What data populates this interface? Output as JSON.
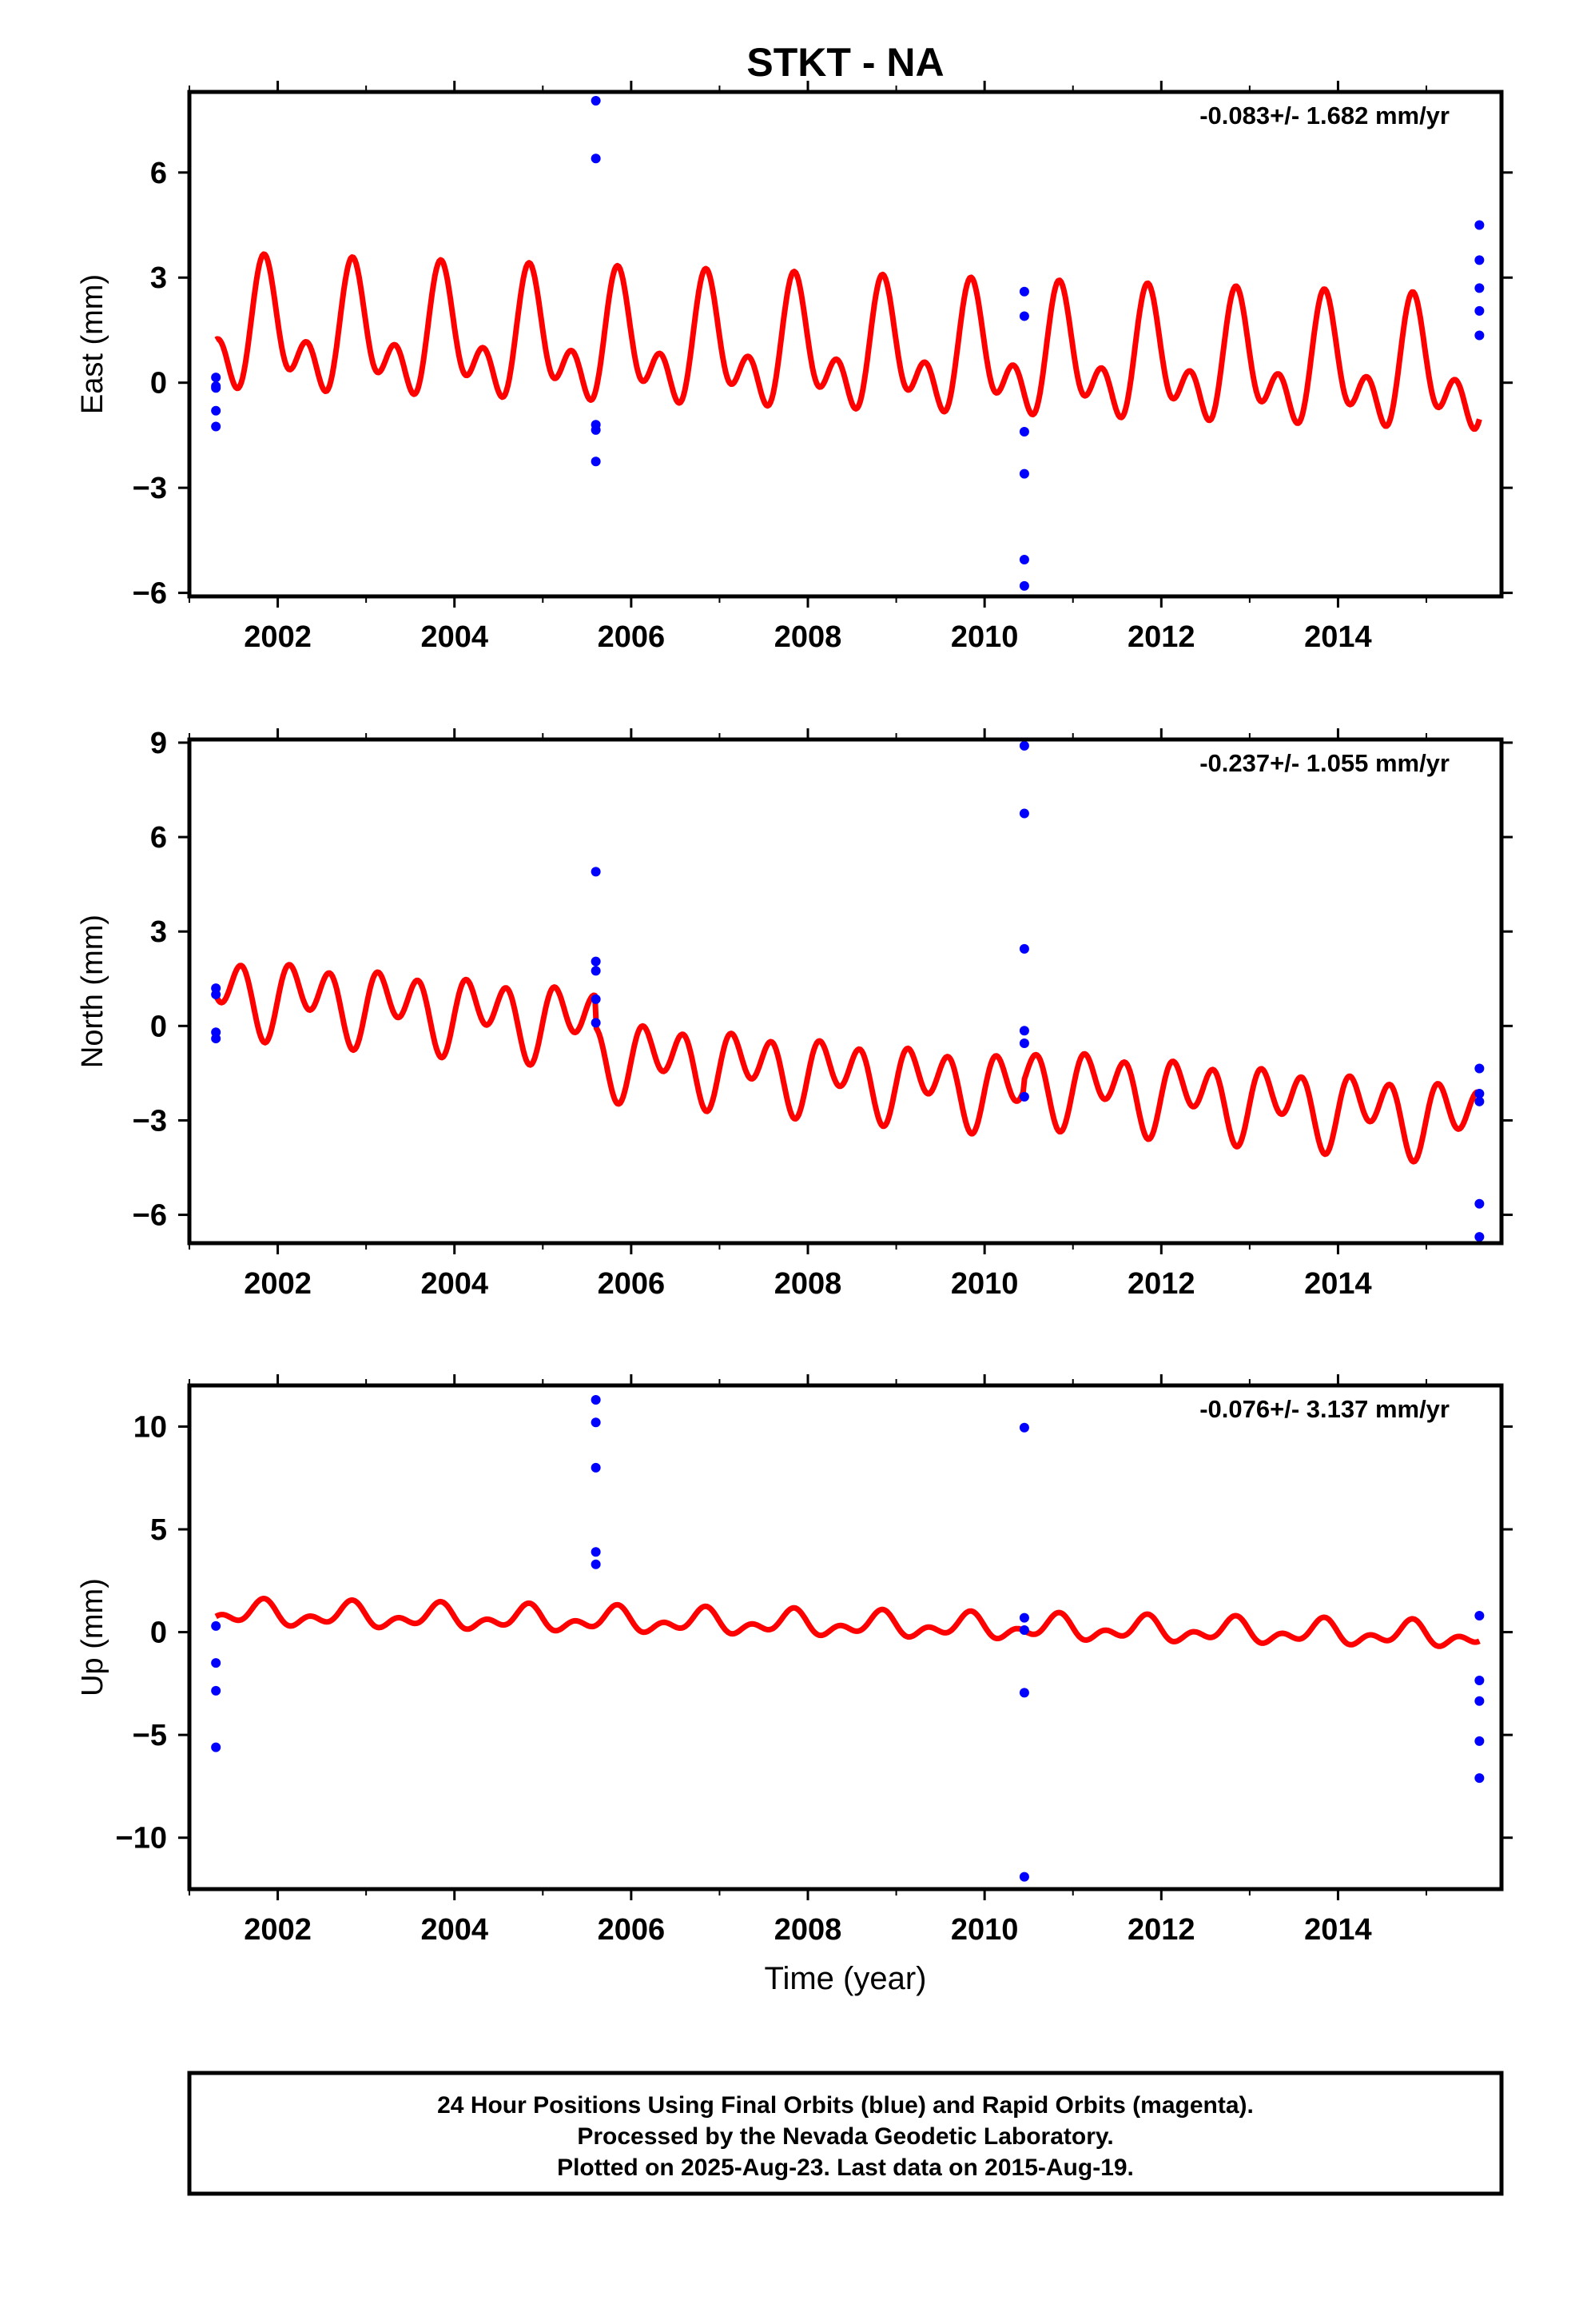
{
  "colors": {
    "final_orbits": "#0000ff",
    "model": "#ff0000",
    "frame": "#000000",
    "background": "#ffffff"
  },
  "figure": {
    "title": "STKT - NA",
    "xlabel": "Time (year)",
    "footer": [
      "24 Hour Positions Using Final Orbits (blue) and Rapid Orbits (magenta).",
      "Processed by the Nevada Geodetic Laboratory.",
      "Plotted on 2025-Aug-23. Last data on 2015-Aug-19."
    ]
  },
  "chart_data": [
    {
      "type": "scatter",
      "title": "STKT - NA",
      "ylabel": "East (mm)",
      "rate": "-0.083+/- 1.682 mm/yr",
      "xlim": [
        2001.0,
        2015.85
      ],
      "ylim": [
        -6.1,
        8.3
      ],
      "xticks": [
        2002,
        2004,
        2006,
        2008,
        2010,
        2012,
        2014
      ],
      "xticklabels": [
        "2002",
        "2004",
        "2006",
        "2008",
        "2010",
        "2012",
        "2014"
      ],
      "yticks": [
        -6,
        -3,
        0,
        3,
        6
      ],
      "yticklabels": [
        "−6",
        "−3",
        "0",
        "3",
        "6"
      ],
      "points": {
        "x": [
          2001.3,
          2001.3,
          2001.3,
          2001.3,
          2001.3,
          2005.6,
          2005.6,
          2005.6,
          2005.6,
          2005.6,
          2010.45,
          2010.45,
          2010.45,
          2010.45,
          2010.45,
          2010.45,
          2015.6,
          2015.6,
          2015.6,
          2015.6,
          2015.6
        ],
        "y": [
          0.15,
          -0.15,
          -0.8,
          -1.25,
          -0.1,
          8.05,
          6.4,
          -1.2,
          -1.35,
          -2.25,
          2.6,
          1.9,
          -1.4,
          -2.6,
          -5.05,
          -5.8,
          4.5,
          3.5,
          2.7,
          2.05,
          1.35
        ]
      },
      "model": {
        "x_range": [
          2001.3,
          2015.6
        ],
        "offset_initial": 1.4,
        "trend_per_yr": -0.083,
        "annual_cos": 0.9,
        "annual_sin": -0.9,
        "semiannual_cos": -0.5,
        "semiannual_sin": -0.95,
        "steps": [
          {
            "at": 2005.6,
            "size": 0.0
          },
          {
            "at": 2010.45,
            "size": 0.0
          }
        ]
      }
    },
    {
      "type": "scatter",
      "ylabel": "North (mm)",
      "rate": "-0.237+/- 1.055 mm/yr",
      "xlim": [
        2001.0,
        2015.85
      ],
      "ylim": [
        -6.9,
        9.1
      ],
      "xticks": [
        2002,
        2004,
        2006,
        2008,
        2010,
        2012,
        2014
      ],
      "xticklabels": [
        "2002",
        "2004",
        "2006",
        "2008",
        "2010",
        "2012",
        "2014"
      ],
      "yticks": [
        -6,
        -3,
        0,
        3,
        6,
        9
      ],
      "yticklabels": [
        "−6",
        "−3",
        "0",
        "3",
        "6",
        "9"
      ],
      "points": {
        "x": [
          2001.3,
          2001.3,
          2001.3,
          2001.3,
          2005.6,
          2005.6,
          2005.6,
          2005.6,
          2005.6,
          2010.45,
          2010.45,
          2010.45,
          2010.45,
          2010.45,
          2010.45,
          2015.6,
          2015.6,
          2015.6,
          2015.6,
          2015.6
        ],
        "y": [
          1.2,
          1.0,
          -0.2,
          -0.4,
          4.9,
          2.05,
          1.75,
          0.85,
          0.1,
          8.9,
          6.75,
          2.45,
          -0.15,
          -0.55,
          -2.25,
          -1.35,
          -2.15,
          -2.4,
          -5.65,
          -6.7
        ]
      },
      "model": {
        "x_range": [
          2001.3,
          2015.6
        ],
        "offset_initial": 1.1,
        "trend_per_yr": -0.237,
        "annual_cos": -0.3,
        "annual_sin": 0.5,
        "semiannual_cos": 0.2,
        "semiannual_sin": 0.9,
        "steps": [
          {
            "at": 2005.6,
            "size": -1.0
          },
          {
            "at": 2010.45,
            "size": 0.3
          }
        ]
      }
    },
    {
      "type": "scatter",
      "ylabel": "Up (mm)",
      "rate": "-0.076+/- 3.137 mm/yr",
      "xlim": [
        2001.0,
        2015.85
      ],
      "ylim": [
        -12.5,
        12.0
      ],
      "xticks": [
        2002,
        2004,
        2006,
        2008,
        2010,
        2012,
        2014
      ],
      "xticklabels": [
        "2002",
        "2004",
        "2006",
        "2008",
        "2010",
        "2012",
        "2014"
      ],
      "yticks": [
        -10,
        -5,
        0,
        5,
        10
      ],
      "yticklabels": [
        "−10",
        "−5",
        "0",
        "5",
        "10"
      ],
      "points": {
        "x": [
          2001.3,
          2001.3,
          2001.3,
          2001.3,
          2005.6,
          2005.6,
          2005.6,
          2005.6,
          2005.6,
          2010.45,
          2010.45,
          2010.45,
          2010.45,
          2010.45,
          2015.6,
          2015.6,
          2015.6,
          2015.6,
          2015.6
        ],
        "y": [
          0.3,
          -1.5,
          -2.85,
          -5.6,
          11.3,
          10.2,
          8.0,
          3.9,
          3.3,
          9.95,
          0.7,
          0.1,
          -2.95,
          -11.9,
          0.8,
          -2.35,
          -3.35,
          -5.3,
          -7.1
        ]
      },
      "model": {
        "x_range": [
          2001.3,
          2015.6
        ],
        "offset_initial": 0.9,
        "trend_per_yr": -0.076,
        "annual_cos": 0.15,
        "annual_sin": -0.4,
        "semiannual_cos": -0.1,
        "semiannual_sin": -0.35,
        "steps": [
          {
            "at": 2005.6,
            "size": 0.0
          },
          {
            "at": 2010.45,
            "size": 0.0
          }
        ]
      }
    }
  ]
}
